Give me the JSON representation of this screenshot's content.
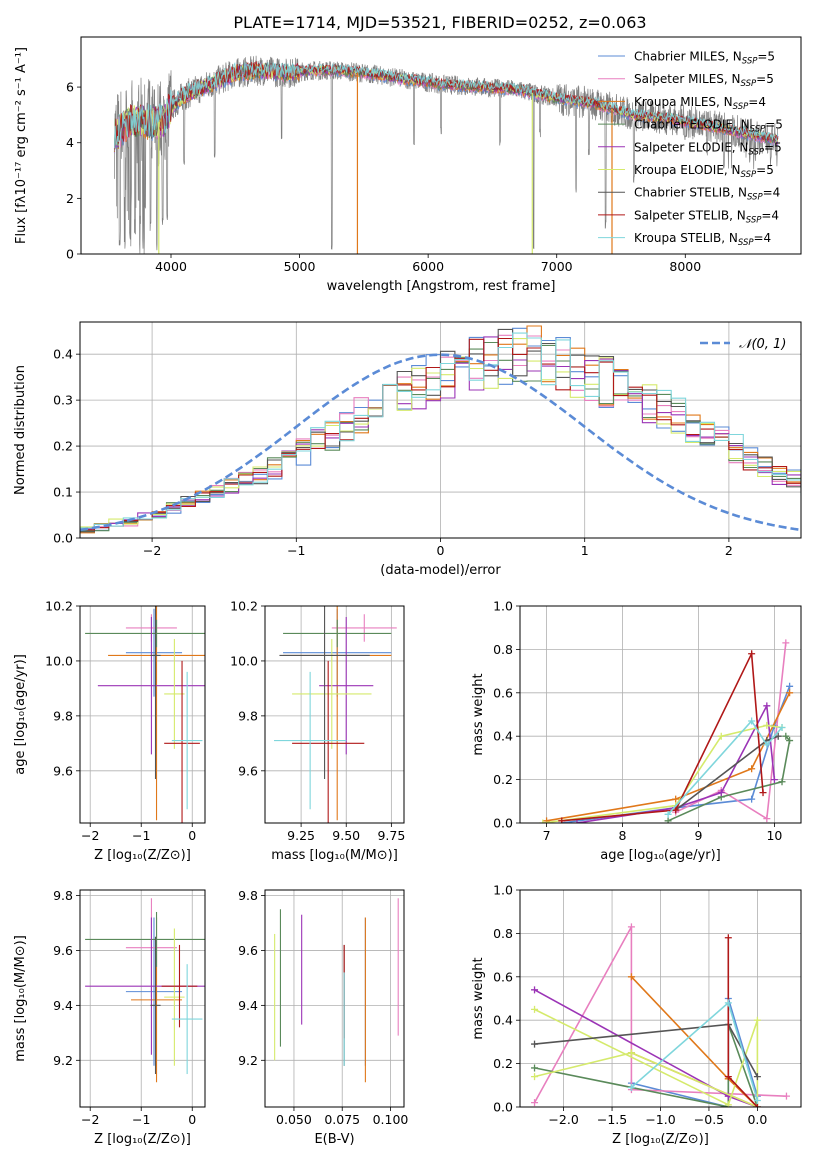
{
  "title": "PLATE=1714, MJD=53521, FIBERID=0252, z=0.063",
  "series_colors": [
    "#5b8bd6",
    "#e87fbf",
    "#e0781a",
    "#5a8a5a",
    "#9b34b6",
    "#d5ea6c",
    "#555555",
    "#b01818",
    "#7fd6dc"
  ],
  "chart_data": [
    {
      "id": "spectrum",
      "type": "line",
      "xlabel": "wavelength [Angstrom, rest frame]",
      "ylabel": "Flux [fλ10⁻¹⁷ erg cm⁻² s⁻¹ A⁻¹]",
      "xlim": [
        3300,
        8900
      ],
      "ylim": [
        0,
        7.8
      ],
      "xticks": [
        4000,
        5000,
        6000,
        7000,
        8000
      ],
      "yticks": [
        0,
        2,
        4,
        6
      ],
      "grid": false,
      "legend_position": "top-right",
      "legend": [
        "Chabrier MILES, NSSP=5",
        "Salpeter MILES, NSSP=5",
        "Kroupa MILES, NSSP=4",
        "Chabrier ELODIE, NSSP=5",
        "Salpeter ELODIE, NSSP=5",
        "Kroupa ELODIE, NSSP=5",
        "Chabrier STELIB, NSSP=4",
        "Salpeter STELIB, NSSP=4",
        "Kroupa STELIB, NSSP=4"
      ],
      "continuum": [
        [
          3560,
          4.3
        ],
        [
          3700,
          4.8
        ],
        [
          3850,
          4.7
        ],
        [
          3950,
          4.8
        ],
        [
          4000,
          5.3
        ],
        [
          4100,
          5.7
        ],
        [
          4300,
          6.1
        ],
        [
          4500,
          6.5
        ],
        [
          4700,
          6.6
        ],
        [
          4900,
          6.5
        ],
        [
          5100,
          6.6
        ],
        [
          5300,
          6.6
        ],
        [
          5500,
          6.5
        ],
        [
          5800,
          6.3
        ],
        [
          6100,
          6.1
        ],
        [
          6400,
          6.0
        ],
        [
          6700,
          5.9
        ],
        [
          7000,
          5.6
        ],
        [
          7300,
          5.4
        ],
        [
          7600,
          5.0
        ],
        [
          7900,
          4.85
        ],
        [
          8300,
          4.5
        ],
        [
          8600,
          4.2
        ],
        [
          8720,
          4.1
        ]
      ],
      "data_dips": [
        [
          3600,
          0.2
        ],
        [
          3640,
          0.3
        ],
        [
          3680,
          0.5
        ],
        [
          3720,
          0.4
        ],
        [
          3760,
          1.0
        ],
        [
          3800,
          1.5
        ],
        [
          3840,
          0.8
        ],
        [
          3890,
          0.0
        ],
        [
          3935,
          1.0
        ],
        [
          3970,
          1.2
        ],
        [
          4102,
          3.2
        ],
        [
          4340,
          3.4
        ],
        [
          4860,
          4.0
        ],
        [
          5250,
          0.0
        ],
        [
          5890,
          3.6
        ],
        [
          6100,
          4.2
        ],
        [
          6560,
          3.9
        ],
        [
          6820,
          0.0
        ],
        [
          6870,
          4.1
        ],
        [
          7150,
          2.0
        ],
        [
          7250,
          3.5
        ],
        [
          7380,
          0.8
        ],
        [
          7600,
          2.5
        ],
        [
          8000,
          4.0
        ],
        [
          8300,
          3.0
        ],
        [
          8500,
          3.1
        ],
        [
          8545,
          3.3
        ],
        [
          8665,
          3.1
        ]
      ],
      "model_spikes": [
        [
          3905,
          0.0
        ],
        [
          5450,
          0.0
        ],
        [
          6810,
          0.0
        ],
        [
          7430,
          0.0
        ]
      ]
    },
    {
      "id": "residual-hist",
      "type": "bar",
      "xlabel": "(data-model)/error",
      "ylabel": "Normed distribution",
      "xlim": [
        -2.5,
        2.5
      ],
      "ylim": [
        0,
        0.47
      ],
      "xticks": [
        -2,
        -1,
        0,
        1,
        2
      ],
      "yticks": [
        0.0,
        0.1,
        0.2,
        0.3,
        0.4
      ],
      "grid": true,
      "legend_position": "top-right",
      "legend": [
        "𝒩(0, 1)"
      ],
      "bin_width": 0.1,
      "base_values": [
        0.022,
        0.025,
        0.03,
        0.036,
        0.043,
        0.052,
        0.063,
        0.074,
        0.087,
        0.1,
        0.114,
        0.128,
        0.143,
        0.158,
        0.174,
        0.19,
        0.205,
        0.224,
        0.24,
        0.258,
        0.276,
        0.293,
        0.309,
        0.325,
        0.34,
        0.354,
        0.366,
        0.377,
        0.387,
        0.395,
        0.398,
        0.395,
        0.387,
        0.377,
        0.366,
        0.354,
        0.34,
        0.325,
        0.309,
        0.293,
        0.276,
        0.258,
        0.24,
        0.224,
        0.205,
        0.19,
        0.174,
        0.158,
        0.143,
        0.128,
        0.114,
        0.1,
        0.087,
        0.074,
        0.063,
        0.052,
        0.043,
        0.036,
        0.03,
        0.025
      ]
    },
    {
      "id": "age-vs-z",
      "type": "scatter",
      "xlabel": "Z [log₁₀(Z/Z⊙)]",
      "ylabel": "age  [log₁₀(age/yr)]",
      "xlim": [
        -2.2,
        0.25
      ],
      "ylim": [
        9.41,
        10.2
      ],
      "xticks": [
        -2,
        -1,
        0
      ],
      "yticks": [
        9.6,
        9.8,
        10.0,
        10.2
      ],
      "grid": true,
      "points": [
        [
          -0.75,
          10.03,
          0.55,
          0.16
        ],
        [
          -0.8,
          10.12,
          0.5,
          0.05
        ],
        [
          -0.7,
          10.02,
          0.95,
          0.6
        ],
        [
          -0.7,
          10.1,
          1.4,
          0.05
        ],
        [
          -0.8,
          9.91,
          1.05,
          0.25
        ],
        [
          -0.35,
          9.88,
          0.2,
          0.2
        ],
        [
          -0.72,
          10.02,
          0.1,
          0.45
        ],
        [
          -0.2,
          9.7,
          0.35,
          0.3
        ],
        [
          -0.1,
          9.71,
          0.3,
          0.25
        ]
      ]
    },
    {
      "id": "age-vs-mass",
      "type": "scatter",
      "xlabel": "mass [log₁₀(M/M⊙)]",
      "ylabel": "",
      "xlim": [
        9.05,
        9.82
      ],
      "ylim": [
        9.41,
        10.2
      ],
      "xticks": [
        9.25,
        9.5,
        9.75
      ],
      "yticks": [
        9.6,
        9.8,
        10.0,
        10.2
      ],
      "grid": true,
      "points": [
        [
          9.45,
          10.03,
          0.3,
          0.16
        ],
        [
          9.6,
          10.12,
          0.18,
          0.05
        ],
        [
          9.45,
          10.02,
          0.3,
          0.6
        ],
        [
          9.45,
          10.1,
          0.3,
          0.05
        ],
        [
          9.5,
          9.91,
          0.15,
          0.25
        ],
        [
          9.42,
          9.88,
          0.22,
          0.2
        ],
        [
          9.38,
          10.02,
          0.25,
          0.45
        ],
        [
          9.4,
          9.7,
          0.2,
          0.3
        ],
        [
          9.3,
          9.71,
          0.2,
          0.25
        ]
      ]
    },
    {
      "id": "weight-vs-age",
      "type": "line",
      "xlabel": "age  [log₁₀(age/yr)]",
      "ylabel": "mass weight",
      "xlim": [
        6.65,
        10.35
      ],
      "ylim": [
        0,
        1.0
      ],
      "xticks": [
        7,
        8,
        9,
        10
      ],
      "yticks": [
        0.0,
        0.2,
        0.4,
        0.6,
        0.8,
        1.0
      ],
      "grid": true,
      "lines": [
        [
          [
            7.2,
            0.0
          ],
          [
            8.7,
            0.07
          ],
          [
            9.7,
            0.11
          ],
          [
            10.0,
            0.45
          ],
          [
            10.2,
            0.63
          ]
        ],
        [
          [
            8.7,
            0.05
          ],
          [
            9.3,
            0.15
          ],
          [
            9.9,
            0.02
          ],
          [
            10.15,
            0.83
          ]
        ],
        [
          [
            7.0,
            0.01
          ],
          [
            8.7,
            0.11
          ],
          [
            9.7,
            0.25
          ],
          [
            10.2,
            0.6
          ]
        ],
        [
          [
            8.6,
            0.01
          ],
          [
            9.3,
            0.12
          ],
          [
            10.1,
            0.19
          ],
          [
            10.2,
            0.38
          ],
          [
            10.15,
            0.4
          ]
        ],
        [
          [
            7.4,
            0.0
          ],
          [
            8.7,
            0.07
          ],
          [
            9.3,
            0.14
          ],
          [
            9.9,
            0.54
          ],
          [
            10.0,
            0.2
          ]
        ],
        [
          [
            6.95,
            0.0
          ],
          [
            8.7,
            0.08
          ],
          [
            9.3,
            0.4
          ],
          [
            9.9,
            0.45
          ],
          [
            10.1,
            0.44
          ]
        ],
        [
          [
            8.7,
            0.06
          ],
          [
            9.9,
            0.38
          ],
          [
            10.05,
            0.4
          ]
        ],
        [
          [
            7.2,
            0.01
          ],
          [
            8.7,
            0.06
          ],
          [
            9.7,
            0.78
          ],
          [
            9.85,
            0.14
          ]
        ],
        [
          [
            8.6,
            0.04
          ],
          [
            9.7,
            0.47
          ],
          [
            9.9,
            0.36
          ],
          [
            10.1,
            0.44
          ]
        ]
      ]
    },
    {
      "id": "mass-vs-z",
      "type": "scatter",
      "xlabel": "Z [log₁₀(Z/Z⊙)]",
      "ylabel": "mass [log₁₀(M/M⊙)]",
      "xlim": [
        -2.2,
        0.25
      ],
      "ylim": [
        9.03,
        9.82
      ],
      "xticks": [
        -2,
        -1,
        0
      ],
      "yticks": [
        9.2,
        9.4,
        9.6,
        9.8
      ],
      "grid": true,
      "points": [
        [
          -0.75,
          9.45,
          0.55,
          0.27
        ],
        [
          -0.8,
          9.61,
          0.5,
          0.18
        ],
        [
          -0.7,
          9.42,
          0.5,
          0.3
        ],
        [
          -0.7,
          9.64,
          1.4,
          0.1
        ],
        [
          -0.8,
          9.47,
          1.3,
          0.25
        ],
        [
          -0.35,
          9.43,
          0.2,
          0.25
        ],
        [
          -0.72,
          9.4,
          0.1,
          0.25
        ],
        [
          -0.25,
          9.47,
          0.35,
          0.15
        ],
        [
          -0.1,
          9.35,
          0.3,
          0.2
        ]
      ]
    },
    {
      "id": "mass-vs-ebv",
      "type": "scatter",
      "xlabel": "E(B-V)",
      "ylabel": "",
      "xlim": [
        0.035,
        0.107
      ],
      "ylim": [
        9.03,
        9.82
      ],
      "xticks": [
        0.05,
        0.075,
        0.1
      ],
      "xticklabels": [
        "0.050",
        "0.075",
        "0.100"
      ],
      "yticks": [
        9.2,
        9.4,
        9.6,
        9.8
      ],
      "grid": true,
      "points": [
        [
          0.087,
          9.45,
          0,
          0.27
        ],
        [
          0.104,
          9.54,
          0,
          0.25
        ],
        [
          0.087,
          9.42,
          0,
          0.3
        ],
        [
          0.043,
          9.5,
          0,
          0.25
        ],
        [
          0.054,
          9.53,
          0,
          0.2
        ],
        [
          0.04,
          9.43,
          0,
          0.23
        ],
        [
          0.076,
          9.4,
          0,
          0.22
        ],
        [
          0.076,
          9.45,
          0,
          0.17
        ],
        [
          0.076,
          9.35,
          0,
          0.17
        ]
      ]
    },
    {
      "id": "weight-vs-z",
      "type": "line",
      "xlabel": "Z [log₁₀(Z/Z⊙)]",
      "ylabel": "mass weight",
      "xlim": [
        -2.45,
        0.45
      ],
      "ylim": [
        0,
        1.0
      ],
      "xticks": [
        -2.0,
        -1.5,
        -1.0,
        -0.5,
        0.0
      ],
      "xticklabels": [
        "−2.0",
        "−1.5",
        "−1.0",
        "−0.5",
        "0.0"
      ],
      "yticks": [
        0.0,
        0.2,
        0.4,
        0.6,
        0.8,
        1.0
      ],
      "grid": true,
      "lines": [
        [
          [
            -1.3,
            0.11
          ],
          [
            -0.3,
            0.0
          ],
          [
            -0.3,
            0.5
          ],
          [
            0.0,
            0.05
          ]
        ],
        [
          [
            -2.3,
            0.02
          ],
          [
            -1.3,
            0.83
          ],
          [
            -1.3,
            0.08
          ],
          [
            0.3,
            0.05
          ]
        ],
        [
          [
            -1.3,
            0.6
          ],
          [
            -0.3,
            0.13
          ],
          [
            -0.3,
            0.13
          ],
          [
            0.0,
            0.0
          ],
          [
            -1.3,
            0.25
          ]
        ],
        [
          [
            -2.3,
            0.18
          ],
          [
            -0.3,
            0.0
          ],
          [
            -0.3,
            0.38
          ],
          [
            0.0,
            0.0
          ]
        ],
        [
          [
            -2.3,
            0.54
          ],
          [
            -0.3,
            0.05
          ],
          [
            0.0,
            0.0
          ],
          [
            -0.3,
            0.05
          ]
        ],
        [
          [
            -2.3,
            0.45
          ],
          [
            -0.3,
            0.01
          ],
          [
            0.0,
            0.4
          ],
          [
            0.0,
            0.0
          ],
          [
            -1.3,
            0.25
          ],
          [
            -2.3,
            0.14
          ]
        ],
        [
          [
            -2.3,
            0.29
          ],
          [
            -0.3,
            0.38
          ],
          [
            0.0,
            0.14
          ]
        ],
        [
          [
            -0.3,
            0.78
          ],
          [
            -0.3,
            0.14
          ],
          [
            0.0,
            0.0
          ]
        ],
        [
          [
            -1.3,
            0.09
          ],
          [
            -0.3,
            0.48
          ],
          [
            0.0,
            0.03
          ]
        ]
      ]
    }
  ]
}
